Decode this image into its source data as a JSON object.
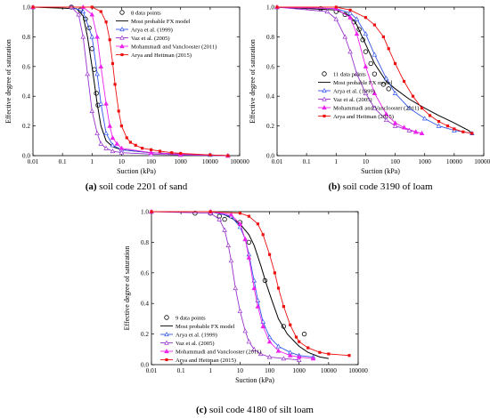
{
  "panels": [
    {
      "caption_bold": "(a)",
      "caption_rest": " soil code 2201 of sand",
      "xlabel": "Suction (kPa)",
      "ylabel": "Effective degree of saturation",
      "legend_placement": "top-right",
      "legend": [
        "8 data points",
        "Most probable FX model",
        "Arya et al. (1999)",
        "Vaz et al. (2005)",
        "Mohammadi and Vanclooster (2011)",
        "Arya and Heitman (2015)"
      ]
    },
    {
      "caption_bold": "(b)",
      "caption_rest": " soil code 3190 of loam",
      "xlabel": "Suction (kPa)",
      "ylabel": "Effective degree of saturation",
      "legend_placement": "center",
      "legend": [
        "11 data points",
        "Most probable FX model",
        "Arya et al. (1999)",
        "Vaz et al. (2005)",
        "Mohammadi and Vanclooster (2011)",
        "Arya and Heitman (2015)"
      ]
    },
    {
      "caption_bold": "(c)",
      "caption_rest": " soil code 4180 of silt loam",
      "xlabel": "Suction (kPa)",
      "ylabel": "Effective degree of saturation",
      "legend_placement": "bottom-left",
      "legend": [
        "9 data points",
        "Most probable FX model",
        "Arya et al. (1999)",
        "Vaz et al. (2005)",
        "Mohammadi and Vanclooster (2011)",
        "Arya and Heitman (2015)"
      ]
    }
  ],
  "colors": {
    "data": "#000000",
    "fx": "#000000",
    "arya1999": "#3355ee",
    "vaz": "#9933cc",
    "mv": "#ee22ee",
    "ah": "#ee1111"
  },
  "chart_data": [
    {
      "type": "line",
      "x_scale": "log",
      "xlim": [
        0.01,
        100000
      ],
      "ylim": [
        0,
        1
      ],
      "x_ticks": [
        "0.01",
        "0.1",
        "1",
        "10",
        "100",
        "1000",
        "10000",
        "100000"
      ],
      "y_ticks": [
        "0.0",
        "0.2",
        "0.4",
        "0.6",
        "0.8",
        "1.0"
      ],
      "series": [
        {
          "name": "8 data points",
          "style": "points",
          "x": [
            0.2,
            0.4,
            0.6,
            0.8,
            1.0,
            1.2,
            1.4,
            1.6
          ],
          "y": [
            1.0,
            0.98,
            0.92,
            0.86,
            0.72,
            0.58,
            0.42,
            0.34
          ]
        },
        {
          "name": "Most probable FX model",
          "style": "line",
          "x": [
            0.01,
            0.3,
            0.5,
            0.7,
            1.0,
            1.5,
            2,
            3,
            5,
            10,
            30,
            100,
            1000,
            40000
          ],
          "y": [
            1.0,
            0.99,
            0.94,
            0.8,
            0.6,
            0.35,
            0.2,
            0.1,
            0.06,
            0.04,
            0.03,
            0.02,
            0.01,
            0.0
          ]
        },
        {
          "name": "Arya et al. (1999)",
          "style": "line-marker",
          "x": [
            0.01,
            0.2,
            0.5,
            1,
            1.5,
            2,
            3,
            5,
            10,
            100,
            1000,
            10000,
            40000
          ],
          "y": [
            1.0,
            1.0,
            0.97,
            0.8,
            0.55,
            0.35,
            0.15,
            0.07,
            0.04,
            0.02,
            0.01,
            0.005,
            0.0
          ]
        },
        {
          "name": "Vaz et al. (2005)",
          "style": "line-marker",
          "x": [
            0.01,
            0.2,
            0.35,
            0.5,
            0.7,
            1,
            1.5,
            2,
            3,
            5,
            10,
            100,
            1000,
            40000
          ],
          "y": [
            1.0,
            1.0,
            0.95,
            0.8,
            0.55,
            0.3,
            0.15,
            0.08,
            0.05,
            0.03,
            0.02,
            0.01,
            0.005,
            0.0
          ]
        },
        {
          "name": "Mohammadi and Vanclooster (2011)",
          "style": "line-marker",
          "x": [
            0.01,
            0.5,
            1,
            1.5,
            2,
            3,
            4,
            5,
            7,
            10,
            100,
            1000,
            40000
          ],
          "y": [
            1.0,
            1.0,
            0.95,
            0.8,
            0.6,
            0.35,
            0.2,
            0.12,
            0.08,
            0.05,
            0.02,
            0.01,
            0.0
          ]
        },
        {
          "name": "Arya and Heitman (2015)",
          "style": "line-marker",
          "x": [
            0.01,
            1,
            2,
            3,
            4,
            5,
            6,
            8,
            10,
            15,
            20,
            30,
            50,
            100,
            200,
            500,
            1000,
            10000,
            40000
          ],
          "y": [
            1.0,
            1.0,
            0.97,
            0.9,
            0.78,
            0.62,
            0.48,
            0.3,
            0.2,
            0.12,
            0.09,
            0.07,
            0.05,
            0.04,
            0.03,
            0.02,
            0.015,
            0.005,
            0.0
          ]
        }
      ]
    },
    {
      "type": "line",
      "x_scale": "log",
      "xlim": [
        0.01,
        100000
      ],
      "ylim": [
        0,
        1
      ],
      "x_ticks": [
        "0.01",
        "0.1",
        "1",
        "10",
        "100",
        "1000",
        "10000",
        "100000"
      ],
      "y_ticks": [
        "0.0",
        "0.2",
        "0.4",
        "0.6",
        "0.8",
        "1.0"
      ],
      "series": [
        {
          "name": "11 data points",
          "style": "points",
          "x": [
            0.3,
            1,
            2,
            4,
            6,
            8,
            10,
            15,
            20,
            40,
            60
          ],
          "y": [
            0.99,
            0.97,
            0.95,
            0.9,
            0.85,
            0.78,
            0.7,
            0.62,
            0.55,
            0.48,
            0.45
          ]
        },
        {
          "name": "Most probable FX model",
          "style": "line",
          "x": [
            0.01,
            1,
            3,
            5,
            10,
            20,
            50,
            100,
            300,
            1000,
            3000,
            10000,
            30000,
            40000
          ],
          "y": [
            1.0,
            0.98,
            0.94,
            0.88,
            0.75,
            0.62,
            0.5,
            0.45,
            0.38,
            0.32,
            0.27,
            0.22,
            0.17,
            0.15
          ]
        },
        {
          "name": "Arya et al. (1999)",
          "style": "line-marker",
          "x": [
            0.01,
            1,
            3,
            5,
            10,
            20,
            50,
            100,
            300,
            1000,
            3000,
            10000,
            40000
          ],
          "y": [
            1.0,
            0.99,
            0.96,
            0.92,
            0.82,
            0.68,
            0.52,
            0.42,
            0.32,
            0.25,
            0.2,
            0.17,
            0.15
          ]
        },
        {
          "name": "Vaz et al. (2005)",
          "style": "line-marker",
          "x": [
            0.01,
            0.5,
            1,
            2,
            3,
            5,
            10,
            20,
            50,
            100,
            300,
            500,
            800
          ],
          "y": [
            1.0,
            0.97,
            0.92,
            0.8,
            0.7,
            0.55,
            0.42,
            0.32,
            0.24,
            0.2,
            0.17,
            0.16,
            0.15
          ]
        },
        {
          "name": "Mohammadi and Vanclooster (2011)",
          "style": "line-marker",
          "x": [
            0.01,
            1,
            3,
            5,
            10,
            20,
            50,
            100,
            200,
            500,
            800
          ],
          "y": [
            1.0,
            0.99,
            0.93,
            0.82,
            0.6,
            0.42,
            0.28,
            0.22,
            0.19,
            0.16,
            0.15
          ]
        },
        {
          "name": "Arya and Heitman (2015)",
          "style": "line-marker",
          "x": [
            0.01,
            1,
            3,
            10,
            20,
            40,
            60,
            100,
            200,
            400,
            800,
            1500,
            3000,
            6000,
            10000,
            20000,
            40000
          ],
          "y": [
            1.0,
            1.0,
            0.98,
            0.93,
            0.88,
            0.8,
            0.72,
            0.62,
            0.5,
            0.4,
            0.32,
            0.27,
            0.23,
            0.2,
            0.18,
            0.16,
            0.15
          ]
        }
      ]
    },
    {
      "type": "line",
      "x_scale": "log",
      "xlim": [
        0.01,
        100000
      ],
      "ylim": [
        0,
        1
      ],
      "x_ticks": [
        "0.01",
        "0.1",
        "1",
        "10",
        "100",
        "1000",
        "10000",
        "100000"
      ],
      "y_ticks": [
        "0.0",
        "0.2",
        "0.4",
        "0.6",
        "0.8",
        "1.0"
      ],
      "series": [
        {
          "name": "9 data points",
          "style": "points",
          "x": [
            0.3,
            1,
            2,
            3,
            10,
            20,
            70,
            300,
            1500
          ],
          "y": [
            0.99,
            0.99,
            0.97,
            0.95,
            0.93,
            0.8,
            0.55,
            0.25,
            0.2
          ]
        },
        {
          "name": "Most probable FX model",
          "style": "line",
          "x": [
            0.01,
            1,
            3,
            6,
            10,
            20,
            30,
            50,
            80,
            120,
            200,
            400,
            1000,
            2000,
            5000,
            10000
          ],
          "y": [
            1.0,
            1.0,
            0.98,
            0.95,
            0.92,
            0.85,
            0.78,
            0.65,
            0.52,
            0.42,
            0.3,
            0.2,
            0.12,
            0.08,
            0.05,
            0.04
          ]
        },
        {
          "name": "Arya et al. (1999)",
          "style": "line-marker",
          "x": [
            0.01,
            1,
            5,
            10,
            15,
            20,
            30,
            40,
            60,
            100,
            200,
            500,
            1000,
            3000
          ],
          "y": [
            1.0,
            1.0,
            0.97,
            0.9,
            0.82,
            0.72,
            0.55,
            0.42,
            0.28,
            0.18,
            0.12,
            0.08,
            0.06,
            0.05
          ]
        },
        {
          "name": "Vaz et al. (2005)",
          "style": "line-marker",
          "x": [
            0.01,
            1,
            2,
            3,
            4,
            5,
            7,
            10,
            15,
            20,
            30,
            50,
            100,
            300,
            1000
          ],
          "y": [
            1.0,
            0.99,
            0.95,
            0.88,
            0.78,
            0.68,
            0.5,
            0.35,
            0.22,
            0.15,
            0.1,
            0.07,
            0.05,
            0.04,
            0.03
          ]
        },
        {
          "name": "Mohammadi and Vanclooster (2011)",
          "style": "line-marker",
          "x": [
            0.01,
            1,
            5,
            10,
            15,
            20,
            30,
            40,
            60,
            100,
            200,
            500,
            1000,
            3000
          ],
          "y": [
            1.0,
            1.0,
            0.98,
            0.92,
            0.82,
            0.7,
            0.5,
            0.38,
            0.25,
            0.15,
            0.09,
            0.06,
            0.05,
            0.04
          ]
        },
        {
          "name": "Arya and Heitman (2015)",
          "style": "line-marker",
          "x": [
            0.01,
            1,
            10,
            20,
            40,
            60,
            100,
            150,
            200,
            300,
            500,
            800,
            1000,
            2000,
            5000,
            10000,
            50000
          ],
          "y": [
            1.0,
            1.0,
            0.99,
            0.97,
            0.92,
            0.85,
            0.72,
            0.6,
            0.5,
            0.38,
            0.26,
            0.18,
            0.15,
            0.11,
            0.08,
            0.07,
            0.06
          ]
        }
      ]
    }
  ]
}
